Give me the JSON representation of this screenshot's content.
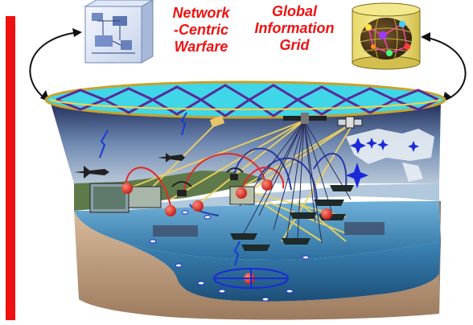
{
  "labels": {
    "ncw": [
      "Network",
      "-Centric",
      "Warfare"
    ],
    "gig": [
      "Global",
      "Information",
      "Grid"
    ]
  },
  "colors": {
    "red": "#ee1111",
    "link_yellow": "#f2d45c",
    "link_red": "#e02a2a",
    "link_blue": "#2a3aa8",
    "grid_cyan": "#3fd6e8",
    "grid_purple": "#5a2a9a",
    "water": "#3d86b8",
    "ground": "#caa98c"
  },
  "icons": [
    "network-diagram-cube-icon",
    "globe-database-cylinder-icon",
    "satellite-icon",
    "aircraft-icon",
    "ship-icon",
    "radar-icon",
    "node-icon"
  ]
}
